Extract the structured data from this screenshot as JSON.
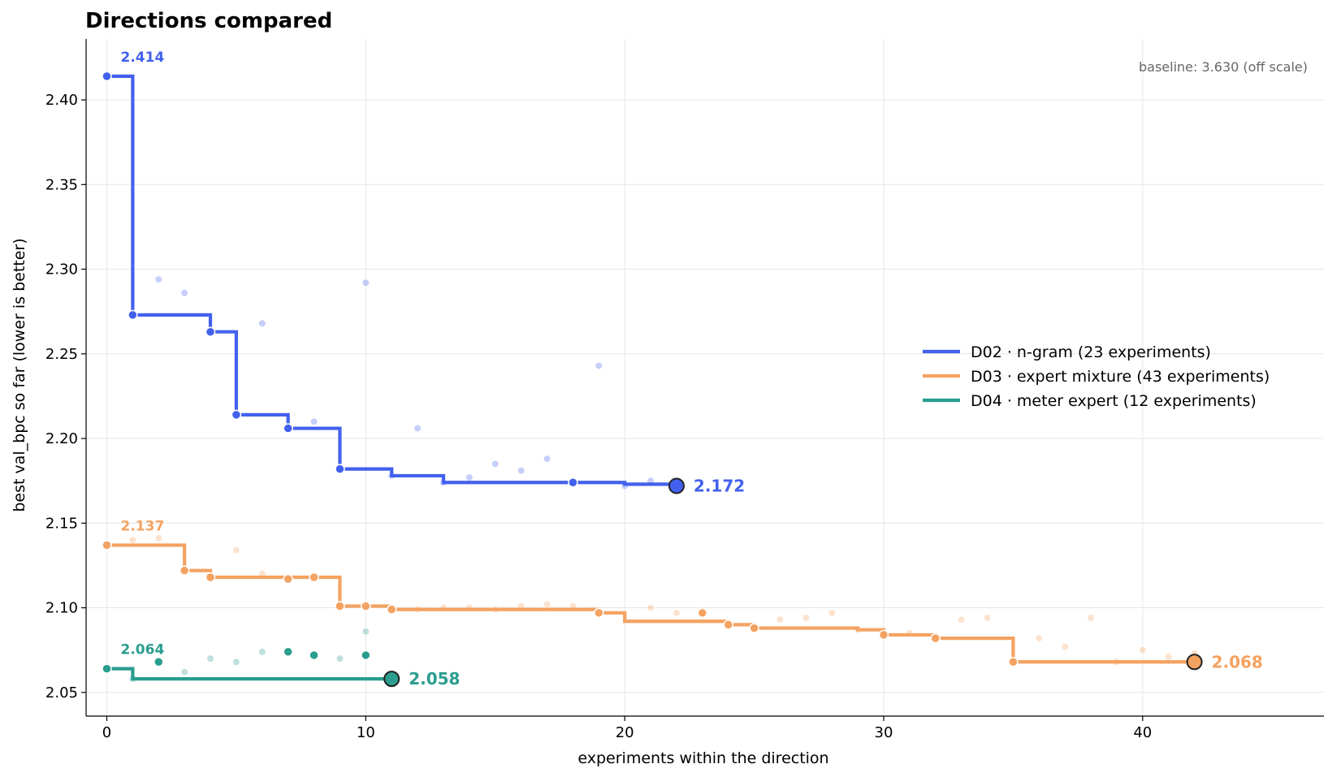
{
  "chart_data": {
    "type": "line",
    "title": "Directions compared",
    "xlabel": "experiments within the direction",
    "ylabel": "best val_bpc so far (lower is better)",
    "xlim": [
      -0.8,
      47
    ],
    "ylim": [
      2.036,
      2.436
    ],
    "x_ticks": [
      0,
      10,
      20,
      30,
      40
    ],
    "y_ticks": [
      2.05,
      2.1,
      2.15,
      2.2,
      2.25,
      2.3,
      2.35,
      2.4
    ],
    "grid": true,
    "legend_position": "center-right",
    "annotation": "baseline: 3.630  (off scale)",
    "series": [
      {
        "name": "D02 · n-gram  (23 experiments)",
        "color": "#4361ee",
        "start_label": "2.414",
        "end_label": "2.172",
        "best": [
          [
            0,
            2.414
          ],
          [
            1,
            2.273
          ],
          [
            4,
            2.263
          ],
          [
            5,
            2.214
          ],
          [
            7,
            2.206
          ],
          [
            9,
            2.182
          ],
          [
            11,
            2.178
          ],
          [
            13,
            2.174
          ],
          [
            20,
            2.173
          ],
          [
            22,
            2.172
          ]
        ],
        "improvements": [
          [
            0,
            2.414
          ],
          [
            1,
            2.273
          ],
          [
            4,
            2.263
          ],
          [
            5,
            2.214
          ],
          [
            7,
            2.206
          ],
          [
            9,
            2.182
          ],
          [
            18,
            2.174
          ],
          [
            22,
            2.172
          ]
        ],
        "trials": [
          [
            2,
            2.294
          ],
          [
            3,
            2.286
          ],
          [
            6,
            2.268
          ],
          [
            8,
            2.21
          ],
          [
            10,
            2.292
          ],
          [
            11,
            2.178
          ],
          [
            12,
            2.206
          ],
          [
            13,
            2.174
          ],
          [
            14,
            2.177
          ],
          [
            15,
            2.185
          ],
          [
            16,
            2.181
          ],
          [
            17,
            2.188
          ],
          [
            19,
            2.243
          ],
          [
            20,
            2.172
          ],
          [
            21,
            2.175
          ]
        ]
      },
      {
        "name": "D03 · expert mixture  (43 experiments)",
        "color": "#f4a261",
        "start_label": "2.137",
        "end_label": "2.068",
        "best": [
          [
            0,
            2.137
          ],
          [
            3,
            2.122
          ],
          [
            4,
            2.118
          ],
          [
            9,
            2.101
          ],
          [
            11,
            2.099
          ],
          [
            19,
            2.097
          ],
          [
            20,
            2.092
          ],
          [
            24,
            2.09
          ],
          [
            25,
            2.088
          ],
          [
            29,
            2.087
          ],
          [
            30,
            2.084
          ],
          [
            32,
            2.082
          ],
          [
            35,
            2.068
          ],
          [
            42,
            2.068
          ]
        ],
        "improvements": [
          [
            0,
            2.137
          ],
          [
            3,
            2.122
          ],
          [
            4,
            2.118
          ],
          [
            7,
            2.117
          ],
          [
            8,
            2.118
          ],
          [
            9,
            2.101
          ],
          [
            10,
            2.101
          ],
          [
            11,
            2.099
          ],
          [
            19,
            2.097
          ],
          [
            23,
            2.097
          ],
          [
            24,
            2.09
          ],
          [
            25,
            2.088
          ],
          [
            30,
            2.084
          ],
          [
            32,
            2.082
          ],
          [
            35,
            2.068
          ],
          [
            42,
            2.068
          ]
        ],
        "trials": [
          [
            1,
            2.14
          ],
          [
            2,
            2.141
          ],
          [
            5,
            2.134
          ],
          [
            6,
            2.12
          ],
          [
            12,
            2.099
          ],
          [
            13,
            2.1
          ],
          [
            14,
            2.1
          ],
          [
            15,
            2.099
          ],
          [
            16,
            2.101
          ],
          [
            17,
            2.102
          ],
          [
            18,
            2.101
          ],
          [
            21,
            2.1
          ],
          [
            22,
            2.097
          ],
          [
            26,
            2.093
          ],
          [
            27,
            2.094
          ],
          [
            28,
            2.097
          ],
          [
            29,
            2.087
          ],
          [
            31,
            2.085
          ],
          [
            33,
            2.093
          ],
          [
            34,
            2.094
          ],
          [
            36,
            2.082
          ],
          [
            37,
            2.077
          ],
          [
            38,
            2.094
          ],
          [
            39,
            2.068
          ],
          [
            40,
            2.075
          ],
          [
            41,
            2.071
          ],
          [
            42,
            2.073
          ]
        ]
      },
      {
        "name": "D04 · meter expert  (12 experiments)",
        "color": "#2a9d8f",
        "start_label": "2.064",
        "end_label": "2.058",
        "best": [
          [
            0,
            2.064
          ],
          [
            1,
            2.058
          ],
          [
            11,
            2.058
          ]
        ],
        "improvements": [
          [
            0,
            2.064
          ],
          [
            2,
            2.068
          ],
          [
            7,
            2.074
          ],
          [
            8,
            2.072
          ],
          [
            10,
            2.072
          ],
          [
            11,
            2.058
          ]
        ],
        "trials": [
          [
            1,
            2.058
          ],
          [
            3,
            2.062
          ],
          [
            4,
            2.07
          ],
          [
            5,
            2.068
          ],
          [
            6,
            2.074
          ],
          [
            9,
            2.07
          ],
          [
            10,
            2.086
          ]
        ]
      }
    ]
  }
}
